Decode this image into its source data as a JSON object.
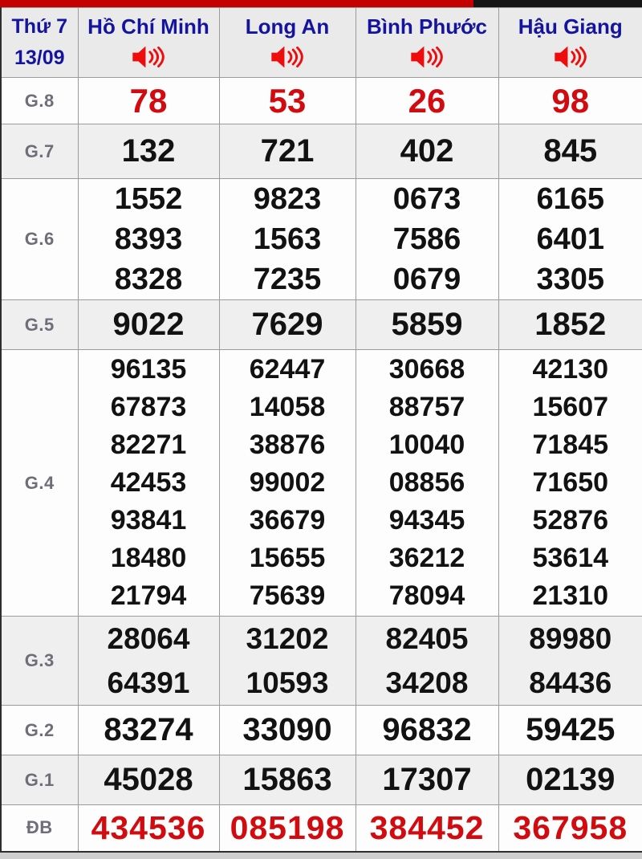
{
  "top_bar": {
    "progress_percent": 74,
    "progress_color": "#c40000",
    "track_color": "#151515"
  },
  "header": {
    "day": "Thứ 7",
    "date": "13/09",
    "columns": [
      {
        "name": "Hồ Chí Minh"
      },
      {
        "name": "Long An"
      },
      {
        "name": "Bình Phước"
      },
      {
        "name": "Hậu Giang"
      }
    ],
    "speaker_icon": "speaker-icon"
  },
  "chart_data": {
    "type": "table",
    "title": "Kết quả xổ số miền Nam Thứ 7 13/09",
    "columns": [
      "Hồ Chí Minh",
      "Long An",
      "Bình Phước",
      "Hậu Giang"
    ],
    "rows": [
      "G.8",
      "G.7",
      "G.6",
      "G.5",
      "G.4",
      "G.3",
      "G.2",
      "G.1",
      "ĐB"
    ]
  },
  "prizes": [
    {
      "label": "G.8",
      "highlight": true,
      "cells": [
        [
          "78"
        ],
        [
          "53"
        ],
        [
          "26"
        ],
        [
          "98"
        ]
      ]
    },
    {
      "label": "G.7",
      "highlight": false,
      "cells": [
        [
          "132"
        ],
        [
          "721"
        ],
        [
          "402"
        ],
        [
          "845"
        ]
      ]
    },
    {
      "label": "G.6",
      "highlight": false,
      "cells": [
        [
          "1552",
          "8393",
          "8328"
        ],
        [
          "9823",
          "1563",
          "7235"
        ],
        [
          "0673",
          "7586",
          "0679"
        ],
        [
          "6165",
          "6401",
          "3305"
        ]
      ]
    },
    {
      "label": "G.5",
      "highlight": false,
      "cells": [
        [
          "9022"
        ],
        [
          "7629"
        ],
        [
          "5859"
        ],
        [
          "1852"
        ]
      ]
    },
    {
      "label": "G.4",
      "highlight": false,
      "cells": [
        [
          "96135",
          "67873",
          "82271",
          "42453",
          "93841",
          "18480",
          "21794"
        ],
        [
          "62447",
          "14058",
          "38876",
          "99002",
          "36679",
          "15655",
          "75639"
        ],
        [
          "30668",
          "88757",
          "10040",
          "08856",
          "94345",
          "36212",
          "78094"
        ],
        [
          "42130",
          "15607",
          "71845",
          "71650",
          "52876",
          "53614",
          "21310"
        ]
      ]
    },
    {
      "label": "G.3",
      "highlight": false,
      "cells": [
        [
          "28064",
          "64391"
        ],
        [
          "31202",
          "10593"
        ],
        [
          "82405",
          "34208"
        ],
        [
          "89980",
          "84436"
        ]
      ]
    },
    {
      "label": "G.2",
      "highlight": false,
      "cells": [
        [
          "83274"
        ],
        [
          "33090"
        ],
        [
          "96832"
        ],
        [
          "59425"
        ]
      ]
    },
    {
      "label": "G.1",
      "highlight": false,
      "cells": [
        [
          "45028"
        ],
        [
          "15863"
        ],
        [
          "17307"
        ],
        [
          "02139"
        ]
      ]
    },
    {
      "label": "ĐB",
      "highlight": true,
      "cells": [
        [
          "434536"
        ],
        [
          "085198"
        ],
        [
          "384452"
        ],
        [
          "367958"
        ]
      ]
    }
  ],
  "colors": {
    "highlight_number_red": "#d10b10",
    "header_text_blue": "#14149e",
    "label_gray": "#6e6e78",
    "number_black": "#121212",
    "row_alt_background": "#efefef",
    "header_background": "#eaeaea",
    "grid_border": "#9b9b9b",
    "outer_border": "#2e2e2e",
    "speaker_icon_red": "#ee0c0c"
  }
}
